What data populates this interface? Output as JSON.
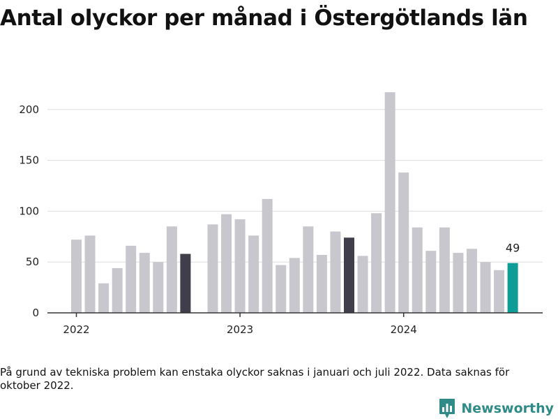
{
  "title": "Antal olyckor per månad i Östergötlands län",
  "footnote": "På grund av tekniska problem kan enstaka olyckor saknas i januari och juli 2022. Data saknas för oktober 2022.",
  "brand": {
    "name": "Newsworthy",
    "icon": "newsworthy-logo-icon"
  },
  "colors": {
    "bar": "#c8c7ce",
    "highlight": "#3f3e4a",
    "current": "#0e9c96",
    "grid": "#dddddd",
    "axis": "#333333"
  },
  "chart_data": {
    "type": "bar",
    "title": "Antal olyckor per månad i Östergötlands län",
    "xlabel": "",
    "ylabel": "",
    "ylim": [
      0,
      240
    ],
    "yticks": [
      0,
      50,
      100,
      150,
      200
    ],
    "xtick_labels": [
      "2022",
      "2023",
      "2024"
    ],
    "grid": true,
    "legend": "none",
    "categories": [
      "2022-01",
      "2022-02",
      "2022-03",
      "2022-04",
      "2022-05",
      "2022-06",
      "2022-07",
      "2022-08",
      "2022-09",
      "2022-10",
      "2022-11",
      "2022-12",
      "2023-01",
      "2023-02",
      "2023-03",
      "2023-04",
      "2023-05",
      "2023-06",
      "2023-07",
      "2023-08",
      "2023-09",
      "2023-10",
      "2023-11",
      "2023-12",
      "2024-01",
      "2024-02",
      "2024-03",
      "2024-04",
      "2024-05",
      "2024-06",
      "2024-07",
      "2024-08",
      "2024-09"
    ],
    "values": [
      72,
      76,
      29,
      44,
      66,
      59,
      50,
      85,
      58,
      null,
      87,
      97,
      92,
      76,
      112,
      47,
      54,
      85,
      57,
      80,
      74,
      56,
      98,
      217,
      138,
      84,
      61,
      84,
      59,
      63,
      50,
      42,
      49
    ],
    "highlighted": [
      "2022-09",
      "2023-09"
    ],
    "current": "2024-09",
    "annotations": [
      {
        "category": "2024-09",
        "text": "49"
      }
    ]
  }
}
